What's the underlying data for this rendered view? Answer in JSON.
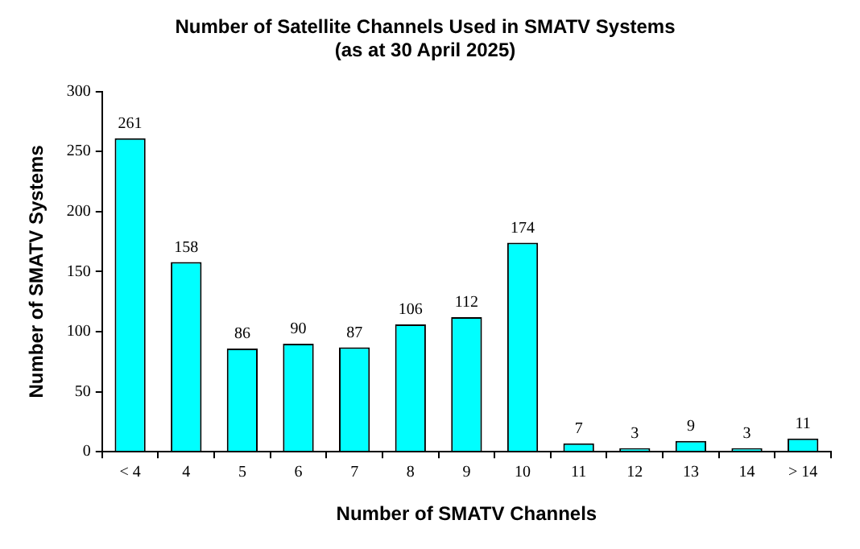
{
  "chart_data": {
    "type": "bar",
    "title": "Number of Satellite Channels Used in SMATV Systems\n(as at 30 April 2025)",
    "xlabel": "Number of SMATV Channels",
    "ylabel": "Number of SMATV Systems",
    "categories": [
      "< 4",
      "4",
      "5",
      "6",
      "7",
      "8",
      "9",
      "10",
      "11",
      "12",
      "13",
      "14",
      "> 14"
    ],
    "values": [
      261,
      158,
      86,
      90,
      87,
      106,
      112,
      174,
      7,
      3,
      9,
      3,
      11
    ],
    "color": "#00ffff",
    "ylim": [
      0,
      300
    ],
    "yticks": [
      0,
      50,
      100,
      150,
      200,
      250,
      300
    ],
    "data_labels": true,
    "legend": false
  }
}
